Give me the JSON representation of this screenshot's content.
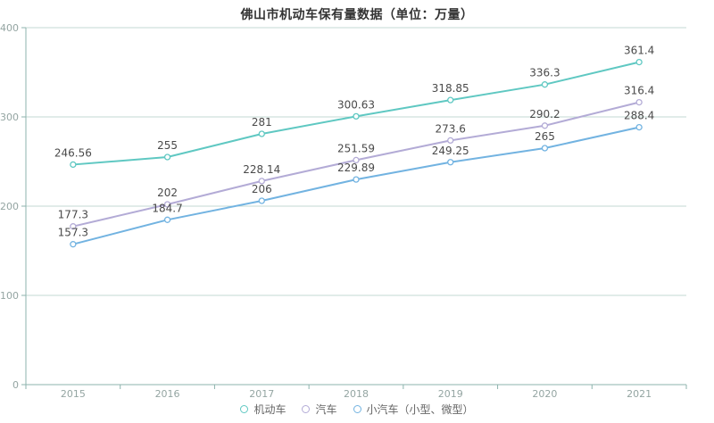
{
  "chart_data": {
    "type": "line",
    "title": "佛山市机动车保有量数据（单位：万量）",
    "categories": [
      "2015",
      "2016",
      "2017",
      "2018",
      "2019",
      "2020",
      "2021"
    ],
    "series": [
      {
        "name": "机动车",
        "slug": "motor-vehicles",
        "color": "#5fc8c2",
        "values": [
          246.56,
          255,
          281,
          300.63,
          318.85,
          336.3,
          361.4
        ]
      },
      {
        "name": "汽车",
        "slug": "automobiles",
        "color": "#b3abd6",
        "values": [
          177.3,
          202,
          228.14,
          251.59,
          273.6,
          290.2,
          316.4
        ]
      },
      {
        "name": "小汽车（小型、微型）",
        "slug": "small-cars",
        "color": "#72b3e1",
        "values": [
          157.3,
          184.7,
          206,
          229.89,
          249.25,
          265,
          288.4
        ]
      }
    ],
    "ylim": [
      0,
      400
    ],
    "yticks": [
      0,
      100,
      200,
      300,
      400
    ],
    "grid": true,
    "legend_position": "bottom",
    "colors": {
      "grid": "#c3d9d3",
      "axis": "#8db3ad",
      "tick_label": "#94a5a2",
      "data_label": "#4a4a4a",
      "title": "#333333",
      "legend_text": "#666666"
    }
  }
}
